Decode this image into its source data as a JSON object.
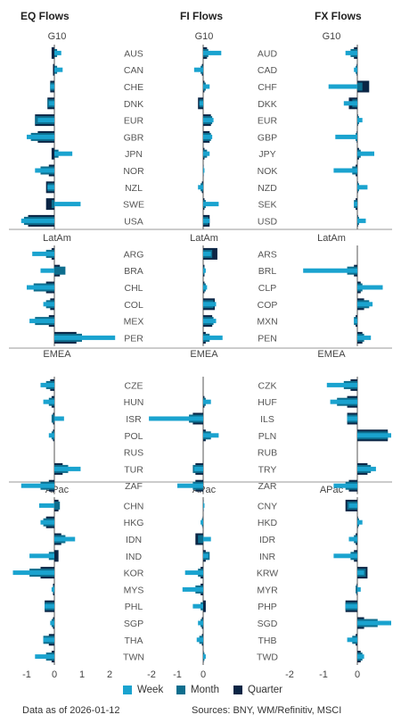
{
  "headers": {
    "eq": "EQ Flows",
    "fi": "FI Flows",
    "fx": "FX Flows"
  },
  "footer": {
    "date": "Data as of 2026-01-12",
    "sources": "Sources:  BNY, WM/Refinitiv, MSCI"
  },
  "colors": {
    "week": "#1aa3cf",
    "month": "#0e6e8e",
    "quarter": "#0b2545",
    "divider": "#9a9a9a",
    "baseline": "#555555"
  },
  "chart_data": {
    "type": "bar",
    "orientation": "horizontal",
    "series_names": [
      "Week",
      "Month",
      "Quarter"
    ],
    "legend_placement": "bottom",
    "regions": [
      "G10",
      "LatAm",
      "EMEA",
      "APac"
    ],
    "panels": [
      {
        "title": "EQ Flows",
        "xlim": [
          -1.3,
          2.2
        ],
        "xticks": [
          "-1",
          "0",
          "1",
          "2"
        ],
        "xtick_values": [
          -1,
          0,
          1,
          2
        ],
        "groups": [
          {
            "region": "G10",
            "rows": [
              {
                "label": "AUS",
                "week": 0.25,
                "month": 0.1,
                "quarter": -0.1
              },
              {
                "label": "CAN",
                "week": 0.3,
                "month": 0.1,
                "quarter": -0.05
              },
              {
                "label": "CHE",
                "week": -0.15,
                "month": -0.15,
                "quarter": -0.15
              },
              {
                "label": "DNK",
                "week": -0.2,
                "month": -0.25,
                "quarter": -0.25
              },
              {
                "label": "EUR",
                "week": -0.6,
                "month": -0.7,
                "quarter": -0.7
              },
              {
                "label": "GBR",
                "week": -1.0,
                "month": -0.85,
                "quarter": -0.6
              },
              {
                "label": "JPN",
                "week": 0.65,
                "month": 0.15,
                "quarter": -0.1
              },
              {
                "label": "NOR",
                "week": -0.7,
                "month": -0.5,
                "quarter": -0.2
              },
              {
                "label": "NZL",
                "week": -0.25,
                "month": -0.25,
                "quarter": -0.3
              },
              {
                "label": "SWE",
                "week": 0.95,
                "month": -0.1,
                "quarter": -0.3
              },
              {
                "label": "USA",
                "week": -1.2,
                "month": -1.1,
                "quarter": -0.95
              }
            ]
          },
          {
            "region": "LatAm",
            "rows": [
              {
                "label": "ARG",
                "week": -0.8,
                "month": -0.3,
                "quarter": -0.1
              },
              {
                "label": "BRA",
                "week": -0.5,
                "month": 0.4,
                "quarter": 0.2
              },
              {
                "label": "CHL",
                "week": -1.0,
                "month": -0.75,
                "quarter": -0.3
              },
              {
                "label": "COL",
                "week": -0.4,
                "month": -0.3,
                "quarter": -0.15
              },
              {
                "label": "MEX",
                "week": -0.9,
                "month": -0.7,
                "quarter": -0.2
              },
              {
                "label": "PER",
                "week": 2.2,
                "month": 1.0,
                "quarter": 0.8
              }
            ]
          },
          {
            "region": "EMEA",
            "rows": [
              {
                "label": "CZE",
                "week": -0.5,
                "month": -0.3,
                "quarter": -0.15
              },
              {
                "label": "HUN",
                "week": -0.4,
                "month": -0.2,
                "quarter": -0.1
              },
              {
                "label": "ISR",
                "week": 0.35,
                "month": -0.1,
                "quarter": -0.05
              },
              {
                "label": "POL",
                "week": -0.2,
                "month": -0.1,
                "quarter": -0.05
              },
              {
                "label": "RUS",
                "week": 0,
                "month": 0,
                "quarter": 0
              },
              {
                "label": "TUR",
                "week": 0.95,
                "month": 0.5,
                "quarter": 0.3
              },
              {
                "label": "ZAF",
                "week": -1.2,
                "month": -0.5,
                "quarter": -0.2
              }
            ]
          },
          {
            "region": "APac",
            "rows": [
              {
                "label": "CHN",
                "week": -0.55,
                "month": 0.2,
                "quarter": 0.15
              },
              {
                "label": "HKG",
                "week": -0.5,
                "month": -0.4,
                "quarter": -0.3
              },
              {
                "label": "IDN",
                "week": 0.75,
                "month": 0.4,
                "quarter": 0.25
              },
              {
                "label": "IND",
                "week": -0.9,
                "month": -0.2,
                "quarter": 0.15
              },
              {
                "label": "KOR",
                "week": -1.5,
                "month": -0.9,
                "quarter": -0.5
              },
              {
                "label": "MYS",
                "week": -0.1,
                "month": -0.05,
                "quarter": -0.05
              },
              {
                "label": "PHL",
                "week": -0.35,
                "month": -0.35,
                "quarter": -0.35
              },
              {
                "label": "SGP",
                "week": -0.15,
                "month": -0.1,
                "quarter": -0.05
              },
              {
                "label": "THA",
                "week": -0.4,
                "month": -0.4,
                "quarter": -0.2
              },
              {
                "label": "TWN",
                "week": -0.7,
                "month": -0.3,
                "quarter": -0.1
              }
            ]
          }
        ]
      },
      {
        "title": "FI Flows",
        "xlim": [
          -2.2,
          0.9
        ],
        "xticks": [
          "-2",
          "-1",
          "0"
        ],
        "xtick_values": [
          -2,
          -1,
          0
        ],
        "groups": [
          {
            "region": "G10",
            "rows": [
              {
                "label": "AUS",
                "week": 0.7,
                "month": 0.2,
                "quarter": 0.15
              },
              {
                "label": "CAN",
                "week": -0.35,
                "month": -0.1,
                "quarter": -0.05
              },
              {
                "label": "CHE",
                "week": 0.25,
                "month": 0.1,
                "quarter": 0.05
              },
              {
                "label": "DNK",
                "week": -0.15,
                "month": -0.15,
                "quarter": -0.2
              },
              {
                "label": "EUR",
                "week": 0.4,
                "month": 0.35,
                "quarter": 0.3
              },
              {
                "label": "GBR",
                "week": 0.35,
                "month": 0.3,
                "quarter": 0.25
              },
              {
                "label": "JPN",
                "week": 0.25,
                "month": 0.15,
                "quarter": 0.05
              },
              {
                "label": "NOR",
                "week": 0.05,
                "month": 0.02,
                "quarter": 0.01
              },
              {
                "label": "NZL",
                "week": -0.2,
                "month": -0.1,
                "quarter": -0.05
              },
              {
                "label": "SWE",
                "week": 0.6,
                "month": 0.1,
                "quarter": 0.05
              },
              {
                "label": "USA",
                "week": 0.25,
                "month": 0.2,
                "quarter": 0.25
              }
            ]
          },
          {
            "region": "LatAm",
            "rows": [
              {
                "label": "ARG",
                "week": 0.3,
                "month": 0.35,
                "quarter": 0.55
              },
              {
                "label": "BRA",
                "week": 0.1,
                "month": 0.05,
                "quarter": 0.05
              },
              {
                "label": "CHL",
                "week": 0.15,
                "month": 0.1,
                "quarter": 0.05
              },
              {
                "label": "COL",
                "week": 0.5,
                "month": 0.4,
                "quarter": 0.45
              },
              {
                "label": "MEX",
                "week": 0.5,
                "month": 0.4,
                "quarter": 0.35
              },
              {
                "label": "PER",
                "week": 0.75,
                "month": 0.25,
                "quarter": 0.1
              }
            ]
          },
          {
            "region": "EMEA",
            "rows": [
              {
                "label": "CZE",
                "week": 0,
                "month": 0,
                "quarter": 0
              },
              {
                "label": "HUN",
                "week": 0.3,
                "month": 0.1,
                "quarter": 0.05
              },
              {
                "label": "ISR",
                "week": -2.1,
                "month": -0.55,
                "quarter": -0.4
              },
              {
                "label": "POL",
                "week": 0.6,
                "month": 0.3,
                "quarter": 0.1
              },
              {
                "label": "RUS",
                "week": 0,
                "month": 0,
                "quarter": 0
              },
              {
                "label": "TUR",
                "week": -0.35,
                "month": -0.4,
                "quarter": -0.3
              },
              {
                "label": "ZAF",
                "week": -1.0,
                "month": -0.4,
                "quarter": -0.3
              }
            ]
          },
          {
            "region": "APac",
            "rows": [
              {
                "label": "CHN",
                "week": 0.05,
                "month": 0.02,
                "quarter": 0.01
              },
              {
                "label": "HKG",
                "week": -0.1,
                "month": -0.05,
                "quarter": -0.02
              },
              {
                "label": "IDN",
                "week": 0.3,
                "month": -0.2,
                "quarter": -0.3
              },
              {
                "label": "IND",
                "week": 0.2,
                "month": 0.25,
                "quarter": 0.1
              },
              {
                "label": "KOR",
                "week": -0.7,
                "month": -0.2,
                "quarter": -0.1
              },
              {
                "label": "MYS",
                "week": -0.8,
                "month": -0.3,
                "quarter": -0.1
              },
              {
                "label": "PHL",
                "week": -0.4,
                "month": -0.1,
                "quarter": 0.1
              },
              {
                "label": "SGP",
                "week": -0.2,
                "month": -0.1,
                "quarter": -0.05
              },
              {
                "label": "THA",
                "week": -0.25,
                "month": -0.15,
                "quarter": -0.05
              },
              {
                "label": "TWN",
                "week": 0.1,
                "month": 0.05,
                "quarter": 0.02
              }
            ]
          }
        ]
      },
      {
        "title": "FX Flows",
        "xlim": [
          -2.3,
          1.0
        ],
        "xticks": [
          "-2",
          "-1",
          "0"
        ],
        "xtick_values": [
          -2,
          -1,
          0
        ],
        "groups": [
          {
            "region": "G10",
            "rows": [
              {
                "label": "AUD",
                "week": -0.35,
                "month": -0.2,
                "quarter": -0.1
              },
              {
                "label": "CAD",
                "week": -0.1,
                "month": -0.05,
                "quarter": -0.02
              },
              {
                "label": "CHF",
                "week": -0.85,
                "month": 0.15,
                "quarter": 0.35
              },
              {
                "label": "DKK",
                "week": -0.4,
                "month": -0.15,
                "quarter": -0.25
              },
              {
                "label": "EUR",
                "week": 0.15,
                "month": 0.05,
                "quarter": 0.02
              },
              {
                "label": "GBP",
                "week": -0.65,
                "month": -0.05,
                "quarter": -0.02
              },
              {
                "label": "JPY",
                "week": 0.5,
                "month": 0.1,
                "quarter": 0.05
              },
              {
                "label": "NOK",
                "week": -0.7,
                "month": -0.15,
                "quarter": -0.05
              },
              {
                "label": "NZD",
                "week": 0.3,
                "month": 0.05,
                "quarter": 0.02
              },
              {
                "label": "SEK",
                "week": -0.1,
                "month": -0.1,
                "quarter": -0.05
              },
              {
                "label": "USD",
                "week": 0.25,
                "month": 0.05,
                "quarter": 0.02
              }
            ]
          },
          {
            "region": "LatAm",
            "rows": [
              {
                "label": "ARS",
                "week": 0,
                "month": 0,
                "quarter": 0
              },
              {
                "label": "BRL",
                "week": -1.6,
                "month": -0.3,
                "quarter": -0.1
              },
              {
                "label": "CLP",
                "week": 0.75,
                "month": 0.15,
                "quarter": 0.1
              },
              {
                "label": "COP",
                "week": 0.45,
                "month": 0.35,
                "quarter": 0.2
              },
              {
                "label": "MXN",
                "week": -0.1,
                "month": -0.1,
                "quarter": -0.05
              },
              {
                "label": "PEN",
                "week": 0.4,
                "month": 0.2,
                "quarter": 0.15
              }
            ]
          },
          {
            "region": "EMEA",
            "rows": [
              {
                "label": "CZK",
                "week": -0.9,
                "month": -0.4,
                "quarter": -0.2
              },
              {
                "label": "HUF",
                "week": -0.8,
                "month": -0.6,
                "quarter": -0.3
              },
              {
                "label": "ILS",
                "week": -0.3,
                "month": -0.3,
                "quarter": -0.3
              },
              {
                "label": "PLN",
                "week": 1.0,
                "month": 0.9,
                "quarter": 0.9
              },
              {
                "label": "RUB",
                "week": 0,
                "month": 0,
                "quarter": 0
              },
              {
                "label": "TRY",
                "week": 0.55,
                "month": 0.4,
                "quarter": 0.3
              },
              {
                "label": "ZAR",
                "week": -0.7,
                "month": -0.35,
                "quarter": -0.25
              }
            ]
          },
          {
            "region": "APac",
            "rows": [
              {
                "label": "CNY",
                "week": -0.25,
                "month": -0.3,
                "quarter": -0.35
              },
              {
                "label": "HKD",
                "week": 0.15,
                "month": 0.05,
                "quarter": 0.02
              },
              {
                "label": "IDR",
                "week": -0.25,
                "month": -0.1,
                "quarter": -0.05
              },
              {
                "label": "INR",
                "week": -0.7,
                "month": -0.2,
                "quarter": -0.1
              },
              {
                "label": "KRW",
                "week": 0.2,
                "month": 0.25,
                "quarter": 0.3
              },
              {
                "label": "MYR",
                "week": 0.1,
                "month": -0.05,
                "quarter": -0.02
              },
              {
                "label": "PHP",
                "week": -0.35,
                "month": -0.35,
                "quarter": -0.35
              },
              {
                "label": "SGD",
                "week": 1.0,
                "month": 0.6,
                "quarter": 0.2
              },
              {
                "label": "THB",
                "week": -0.3,
                "month": -0.15,
                "quarter": -0.05
              },
              {
                "label": "TWD",
                "week": 0.2,
                "month": 0.15,
                "quarter": 0.1
              }
            ]
          }
        ]
      }
    ]
  }
}
